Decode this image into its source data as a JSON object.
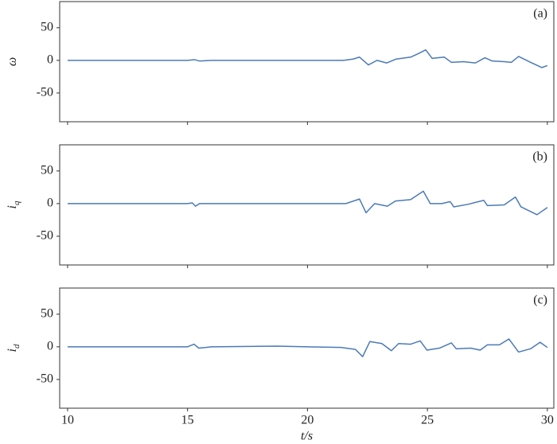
{
  "chart_data": [
    {
      "type": "line",
      "annotation": "(a)",
      "ylabel": "ω",
      "xlim": [
        9.67,
        30.27
      ],
      "ylim": [
        -94,
        90
      ],
      "xticks": [
        10,
        15,
        20,
        25,
        30
      ],
      "yticks": [
        -50,
        0,
        50
      ],
      "xtick_labels": false,
      "series": [
        {
          "color": "#4a7ab8",
          "x": [
            10,
            12,
            15,
            15.3,
            15.5,
            16,
            18,
            20,
            21.5,
            21.9,
            22.17,
            22.54,
            22.9,
            23.3,
            23.7,
            24.3,
            24.6,
            24.93,
            25.2,
            25.7,
            26,
            26.5,
            27,
            27.4,
            27.7,
            28.2,
            28.5,
            28.8,
            29.3,
            29.77,
            30
          ],
          "values": [
            0,
            0,
            0,
            1,
            -1,
            0,
            0,
            0,
            0,
            2,
            5,
            -7,
            0,
            -4,
            2,
            5,
            10,
            16,
            3,
            5,
            -3,
            -2,
            -4,
            4,
            -1,
            -2,
            -3,
            6,
            -3,
            -11,
            -8
          ]
        }
      ]
    },
    {
      "type": "line",
      "annotation": "(b)",
      "ylabel": "i",
      "ylabel_subscript": "q",
      "xlim": [
        9.67,
        30.27
      ],
      "ylim": [
        -94,
        90
      ],
      "xticks": [
        10,
        15,
        20,
        25,
        30
      ],
      "yticks": [
        -50,
        0,
        50
      ],
      "xtick_labels": false,
      "series": [
        {
          "color": "#4a7ab8",
          "x": [
            10,
            12,
            15,
            15.2,
            15.33,
            15.5,
            17,
            19,
            21,
            21.6,
            22.17,
            22.44,
            22.8,
            23.33,
            23.67,
            24.3,
            24.83,
            25.12,
            25.6,
            25.95,
            26.1,
            26.7,
            27.35,
            27.5,
            28.2,
            28.67,
            28.9,
            29.57,
            30
          ],
          "values": [
            0,
            0,
            0,
            1,
            -4,
            0,
            0,
            0,
            0,
            0,
            7,
            -14,
            0,
            -4,
            4,
            6,
            19,
            0,
            0,
            3,
            -5,
            -1,
            5,
            -3,
            -2,
            10,
            -5,
            -17,
            -6
          ]
        }
      ]
    },
    {
      "type": "line",
      "annotation": "(c)",
      "ylabel": "i",
      "ylabel_subscript": "d",
      "xlabel": "t/s",
      "xlim": [
        9.67,
        30.27
      ],
      "ylim": [
        -94,
        90
      ],
      "xticks": [
        10,
        15,
        20,
        25,
        30
      ],
      "yticks": [
        -50,
        0,
        50
      ],
      "xtick_labels": true,
      "series": [
        {
          "color": "#4a7ab8",
          "x": [
            10,
            12,
            15,
            15.27,
            15.47,
            16,
            18.7,
            20,
            21.4,
            22,
            22.3,
            22.6,
            23.1,
            23.5,
            23.8,
            24.3,
            24.7,
            24.98,
            25.5,
            26,
            26.2,
            26.8,
            27.2,
            27.5,
            28,
            28.4,
            28.8,
            29.3,
            29.7,
            30
          ],
          "values": [
            0,
            0,
            0,
            4,
            -2,
            0,
            1,
            0,
            -1,
            -4,
            -15,
            8,
            5,
            -6,
            5,
            4,
            9,
            -5,
            -2,
            6,
            -3,
            -2,
            -5,
            3,
            3,
            12,
            -8,
            -3,
            7,
            -1
          ]
        }
      ]
    }
  ]
}
